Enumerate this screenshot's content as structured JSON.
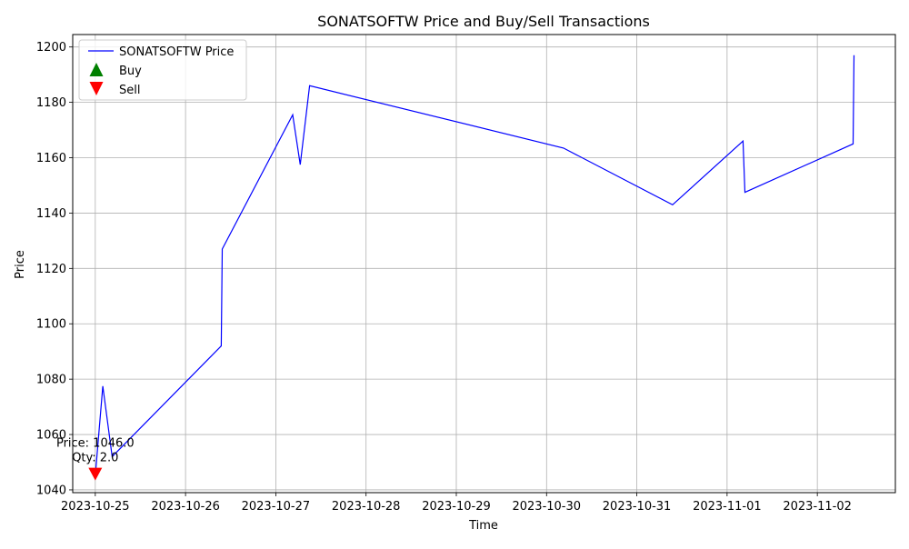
{
  "colors": {
    "price_line": "#0000ff",
    "buy_marker": "#008000",
    "sell_marker": "#ff0000",
    "grid": "#b0b0b0",
    "axes": "#000000"
  },
  "chart_data": {
    "type": "line",
    "title": "SONATSOFTW Price and Buy/Sell Transactions",
    "xlabel": "Time",
    "ylabel": "Price",
    "grid": true,
    "legend_position": "top-left",
    "xlim": [
      "2023-10-24T18:00",
      "2023-11-02T20:45"
    ],
    "ylim": [
      1039,
      1204.5
    ],
    "x_ticks": [
      "2023-10-25",
      "2023-10-26",
      "2023-10-27",
      "2023-10-28",
      "2023-10-29",
      "2023-10-30",
      "2023-10-31",
      "2023-11-01",
      "2023-11-02"
    ],
    "y_ticks": [
      1040,
      1060,
      1080,
      1100,
      1120,
      1140,
      1160,
      1180,
      1200
    ],
    "series": [
      {
        "name": "SONATSOFTW Price",
        "points": [
          {
            "x": "2023-10-25T00:00",
            "y": 1045.0
          },
          {
            "x": "2023-10-25T02:00",
            "y": 1077.5
          },
          {
            "x": "2023-10-25T04:30",
            "y": 1052.0
          },
          {
            "x": "2023-10-26T09:30",
            "y": 1092.0
          },
          {
            "x": "2023-10-26T09:45",
            "y": 1127.0
          },
          {
            "x": "2023-10-27T04:30",
            "y": 1175.5
          },
          {
            "x": "2023-10-27T06:30",
            "y": 1157.5
          },
          {
            "x": "2023-10-27T09:00",
            "y": 1186.0
          },
          {
            "x": "2023-10-30T04:30",
            "y": 1163.5
          },
          {
            "x": "2023-10-31T09:30",
            "y": 1143.0
          },
          {
            "x": "2023-11-01T04:15",
            "y": 1166.0
          },
          {
            "x": "2023-11-01T04:45",
            "y": 1147.5
          },
          {
            "x": "2023-11-02T09:30",
            "y": 1165.0
          },
          {
            "x": "2023-11-02T09:45",
            "y": 1197.0
          }
        ]
      }
    ],
    "markers": {
      "buy": {
        "label": "Buy",
        "points": []
      },
      "sell": {
        "label": "Sell",
        "points": [
          {
            "x": "2023-10-25T00:00",
            "y": 1046.0
          }
        ]
      }
    },
    "annotations": [
      {
        "x": "2023-10-25T00:00",
        "y": 1046.0,
        "lines": [
          "Price: 1046.0",
          "Qty: 2.0"
        ]
      }
    ]
  }
}
